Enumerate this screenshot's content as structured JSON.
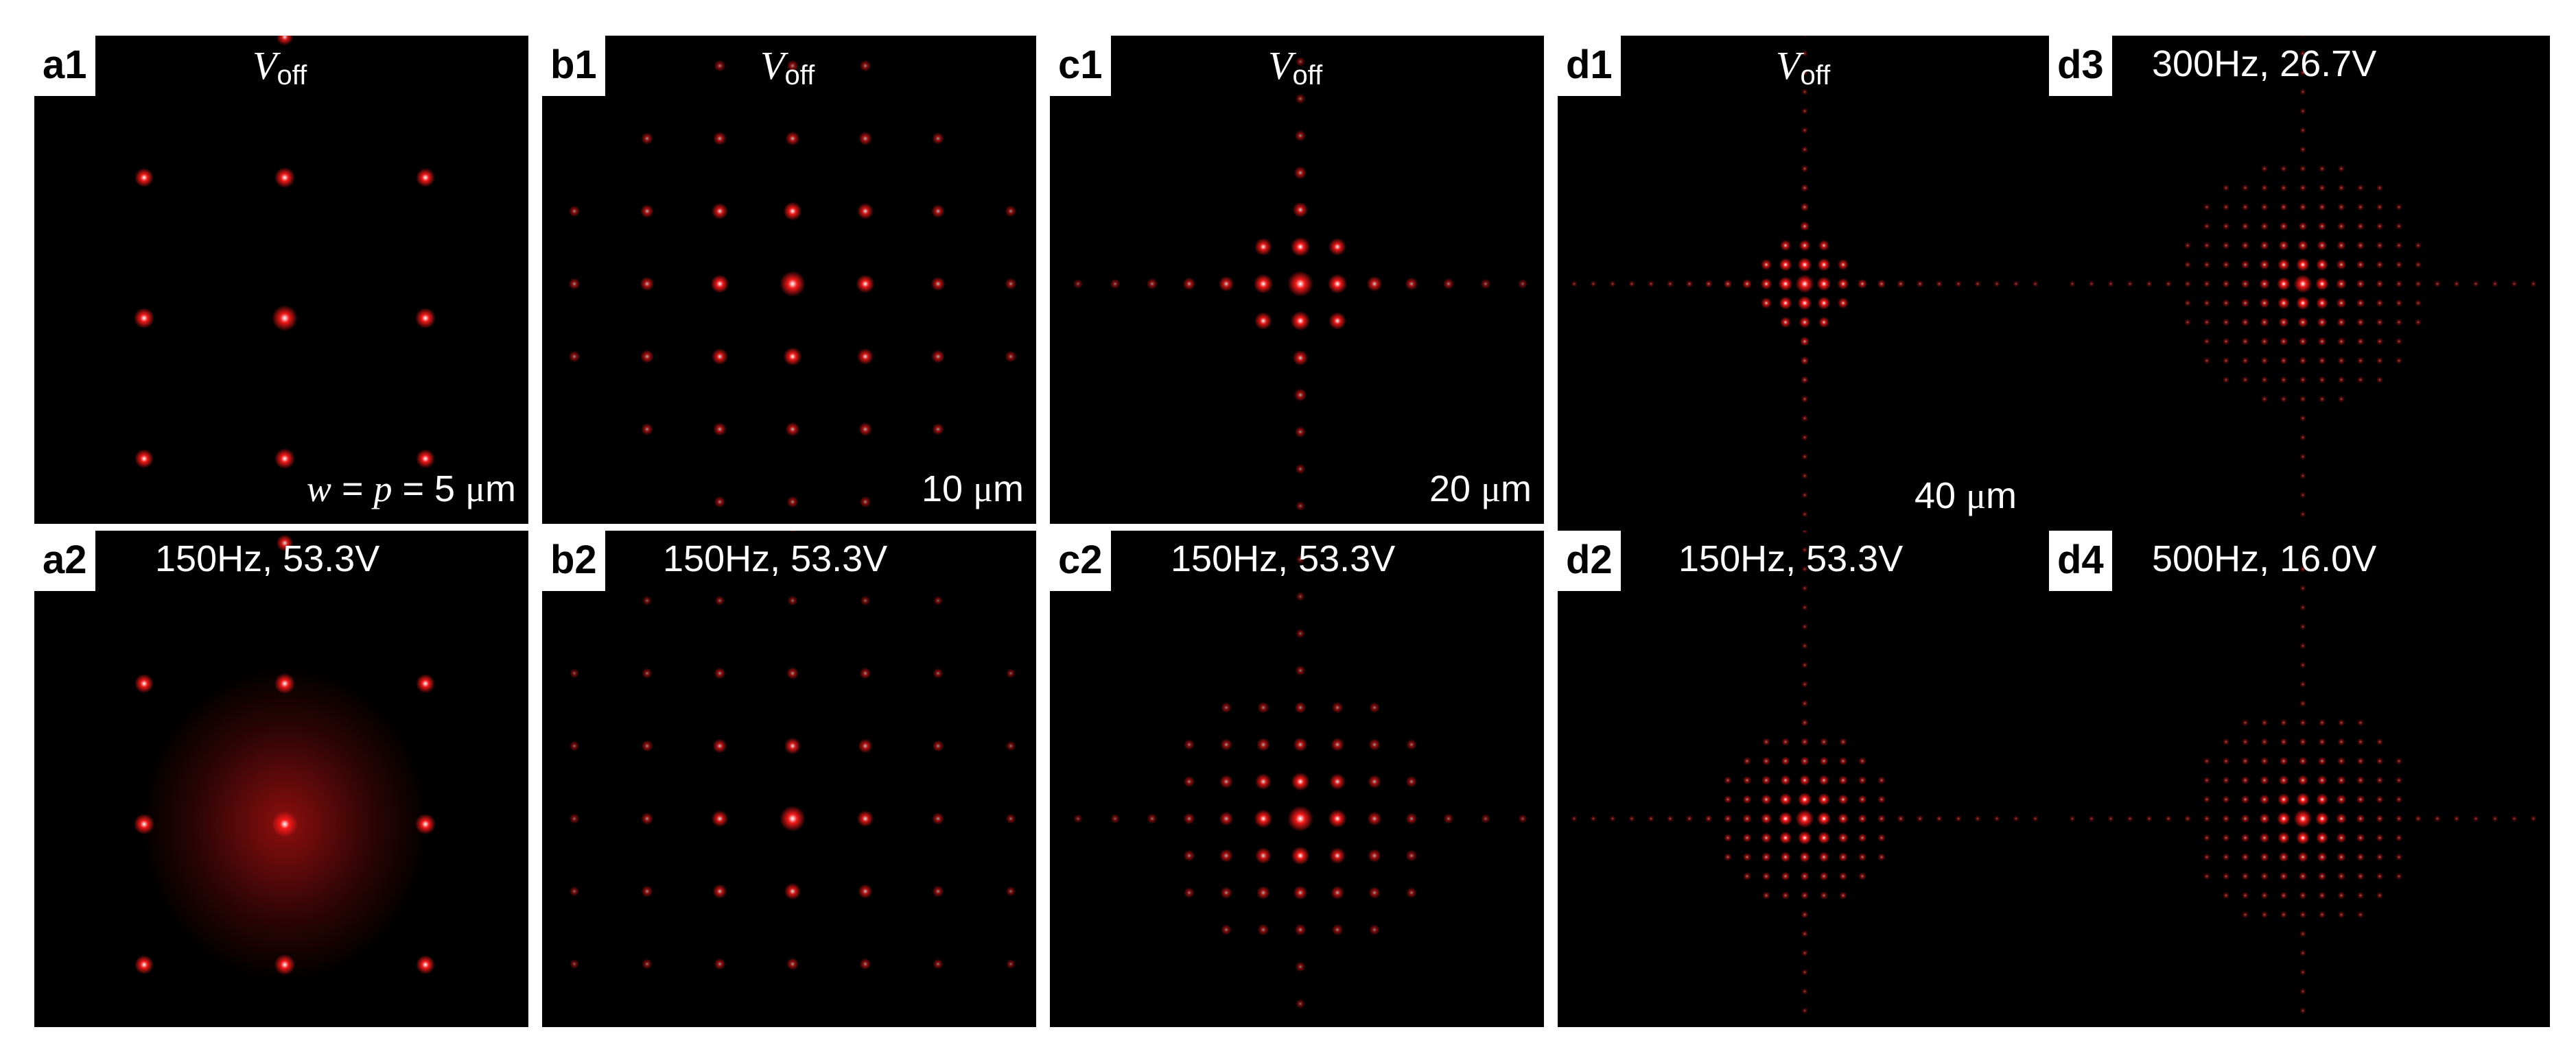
{
  "panels": {
    "a1": {
      "tag": "a1",
      "voff": "V",
      "voff_sub": "off"
    },
    "a2": {
      "tag": "a2",
      "condition": "150Hz, 53.3V"
    },
    "b1": {
      "tag": "b1",
      "voff": "V",
      "voff_sub": "off"
    },
    "b2": {
      "tag": "b2",
      "condition": "150Hz, 53.3V"
    },
    "c1": {
      "tag": "c1",
      "voff": "V",
      "voff_sub": "off"
    },
    "c2": {
      "tag": "c2",
      "condition": "150Hz, 53.3V"
    },
    "d1": {
      "tag": "d1",
      "voff": "V",
      "voff_sub": "off"
    },
    "d2": {
      "tag": "d2",
      "condition": "150Hz, 53.3V"
    },
    "d3": {
      "tag": "d3",
      "condition": "300Hz, 26.7V"
    },
    "d4": {
      "tag": "d4",
      "condition": "500Hz, 16.0V"
    }
  },
  "scales": {
    "a": {
      "w": "w",
      "eq1": " = ",
      "p": "p",
      "eq2": " = 5 ",
      "mu": "μ",
      "unit": "m"
    },
    "b": {
      "value": "10 ",
      "mu": "μ",
      "unit": "m"
    },
    "c": {
      "value": "20 ",
      "mu": "μ",
      "unit": "m"
    },
    "d": {
      "value": "40 ",
      "mu": "μ",
      "unit": "m"
    }
  },
  "colors": {
    "spot_core": "#ffffff",
    "spot_red": "#ff1a1a",
    "background": "#000000",
    "label_bg": "#ffffff"
  }
}
